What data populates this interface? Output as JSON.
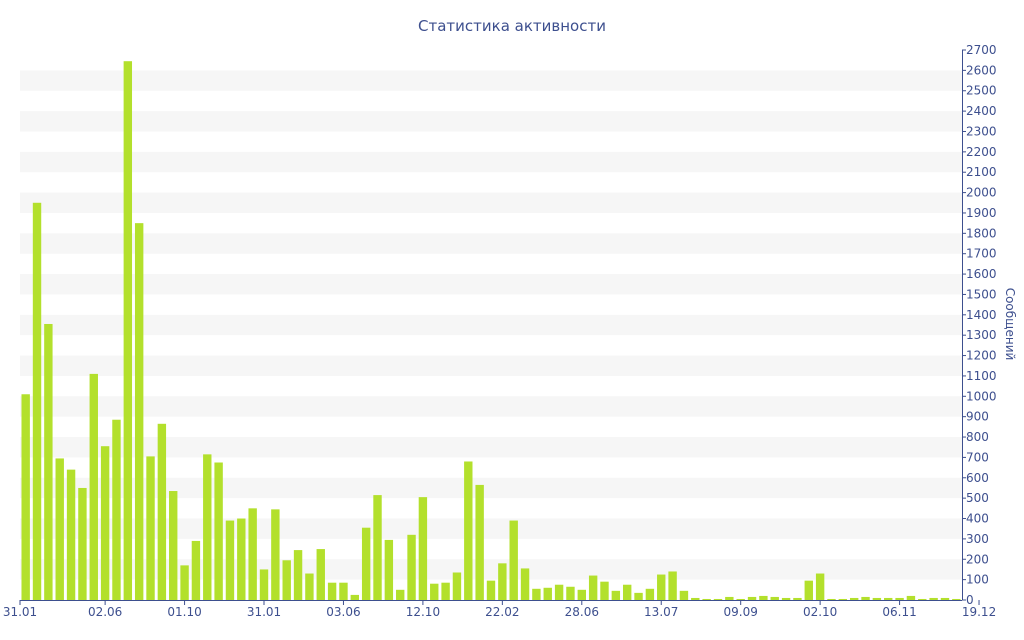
{
  "chart_data": {
    "type": "bar",
    "title": "Статистика активности",
    "ylabel": "Сообщений",
    "xlabel": "",
    "ylim": [
      0,
      2700
    ],
    "y_ticks": [
      0,
      100,
      200,
      300,
      400,
      500,
      600,
      700,
      800,
      900,
      1000,
      1100,
      1200,
      1300,
      1400,
      1500,
      1600,
      1700,
      1800,
      1900,
      2000,
      2100,
      2200,
      2300,
      2400,
      2500,
      2600,
      2700
    ],
    "y_axis_position": "right",
    "grid": "alternating horizontal bands",
    "legend": "none",
    "x_tick_labels": [
      {
        "index": 0,
        "label": "31.01"
      },
      {
        "index": 7,
        "label": "02.06"
      },
      {
        "index": 14,
        "label": "01.10"
      },
      {
        "index": 21,
        "label": "31.01"
      },
      {
        "index": 28,
        "label": "03.06"
      },
      {
        "index": 35,
        "label": "12.10"
      },
      {
        "index": 42,
        "label": "22.02"
      },
      {
        "index": 49,
        "label": "28.06"
      },
      {
        "index": 56,
        "label": "13.07"
      },
      {
        "index": 63,
        "label": "09.09"
      },
      {
        "index": 70,
        "label": "02.10"
      },
      {
        "index": 77,
        "label": "06.11"
      },
      {
        "index": 84,
        "label": "19.12"
      }
    ],
    "values": [
      1010,
      1950,
      1355,
      695,
      640,
      550,
      1110,
      755,
      885,
      2645,
      1850,
      705,
      865,
      535,
      170,
      290,
      715,
      675,
      390,
      400,
      450,
      150,
      445,
      195,
      245,
      130,
      250,
      85,
      85,
      25,
      355,
      515,
      295,
      50,
      320,
      505,
      80,
      85,
      135,
      680,
      565,
      95,
      180,
      390,
      155,
      55,
      60,
      75,
      65,
      50,
      120,
      90,
      45,
      75,
      35,
      55,
      125,
      140,
      45,
      10,
      5,
      5,
      15,
      5,
      15,
      20,
      15,
      10,
      10,
      95,
      130,
      5,
      5,
      10,
      15,
      10,
      10,
      10,
      20,
      5,
      10,
      10,
      5
    ],
    "colors": {
      "bar": "#b3e02c",
      "text": "#3d4f8e",
      "band": "#f6f6f6",
      "axis": "#3d4f8e"
    }
  }
}
